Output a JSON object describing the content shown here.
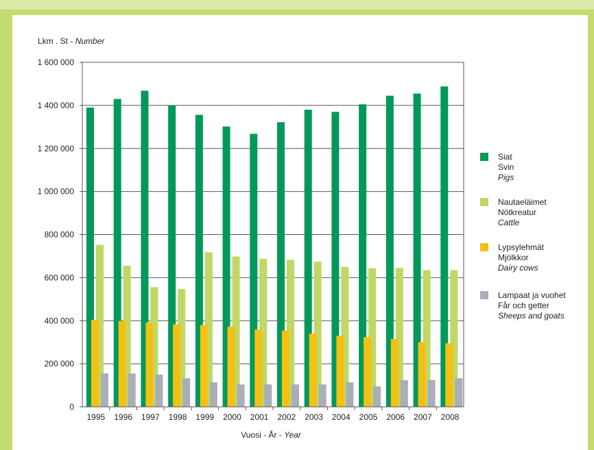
{
  "chart_data": {
    "type": "bar",
    "ylabel": {
      "main": "Lkm . St - ",
      "italic": "Number"
    },
    "xlabel": {
      "main": "Vuosi - År - ",
      "italic": "Year"
    },
    "ylim": [
      0,
      1600000
    ],
    "yticks": [
      0,
      200000,
      400000,
      600000,
      800000,
      1000000,
      1200000,
      1400000,
      1600000
    ],
    "ytick_labels": [
      "0",
      "200 000",
      "400 000",
      "600 000",
      "800 000",
      "1 000 000",
      "1 200 000",
      "1 400 000",
      "1 600 000"
    ],
    "categories": [
      "1995",
      "1996",
      "1997",
      "1998",
      "1999",
      "2000",
      "2001",
      "2002",
      "2003",
      "2004",
      "2005",
      "2006",
      "2007",
      "2008"
    ],
    "grid": "horizontal",
    "legend_position": "right",
    "series": [
      {
        "name": "Siat",
        "name2": "Svin",
        "name3": "Pigs",
        "color": "#00995a",
        "values": [
          1390000,
          1430000,
          1468000,
          1400000,
          1356000,
          1302000,
          1268000,
          1322000,
          1380000,
          1370000,
          1405000,
          1445000,
          1455000,
          1488000
        ]
      },
      {
        "name": "Nautaeläimet",
        "name2": "Nötkreatur",
        "name3": "Cattle",
        "color": "#c0d865",
        "values": [
          752000,
          655000,
          556000,
          547000,
          718000,
          698000,
          688000,
          683000,
          674000,
          650000,
          644000,
          645000,
          635000,
          635000
        ]
      },
      {
        "name": "Lypsylehmät",
        "name2": "Mjölkkor",
        "name3": "Dairy cows",
        "color": "#f5c014",
        "values": [
          404000,
          399000,
          392000,
          383000,
          380000,
          372000,
          359000,
          354000,
          340000,
          330000,
          324000,
          315000,
          300000,
          295000
        ]
      },
      {
        "name": "Lampaat ja vuohet",
        "name2": "Får och getter",
        "name3": "Sheeps and goats",
        "color": "#a9aeb8",
        "values": [
          155000,
          155000,
          150000,
          133000,
          114000,
          104000,
          104000,
          104000,
          104000,
          114000,
          95000,
          124000,
          124000,
          133000
        ]
      }
    ]
  }
}
